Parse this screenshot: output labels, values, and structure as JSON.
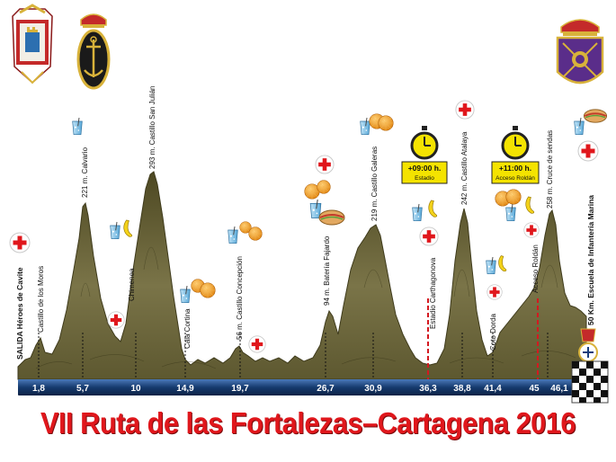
{
  "title": "VII Ruta de las Fortalezas–Cartagena 2016",
  "colors": {
    "profile_fill": "#6f6a3e",
    "profile_dark": "#3f3b1c",
    "axis_bar": "#163a6e",
    "title_red": "#e0171c",
    "cut_line": "#d41920",
    "timer_yellow": "#f4e300"
  },
  "km_marks": [
    "1,8",
    "5,7",
    "10",
    "14,9",
    "19,7",
    "26,7",
    "30,9",
    "36,3",
    "38,8",
    "41,4",
    "45",
    "46,1"
  ],
  "waypoints": [
    {
      "label": "SALIDA  Héroes de Cavite",
      "bold": true
    },
    {
      "label": "Castillo de los Moros",
      "bold": false
    },
    {
      "label": "221 m. Calvario",
      "bold": false
    },
    {
      "label": "Chimenea",
      "bold": false
    },
    {
      "label": "293 m. Castillo San Julián",
      "bold": false
    },
    {
      "label": "Cala Cortina",
      "bold": false
    },
    {
      "label": "56 m. Castillo Concepción",
      "bold": false
    },
    {
      "label": "94 m. Batería Fajardo",
      "bold": false
    },
    {
      "label": "219 m. Castillo Galeras",
      "bold": false
    },
    {
      "label": "Estadio Carthagonova",
      "bold": false
    },
    {
      "label": "242 m. Castillo Atalaya",
      "bold": false
    },
    {
      "label": "Coto Dorda",
      "bold": false
    },
    {
      "label": "Acceso Roldán",
      "bold": false
    },
    {
      "label": "258 m.  Cruce de sendas",
      "bold": false
    },
    {
      "label": "50 Km.  Escuela de Infantería  Marina",
      "bold": true
    }
  ],
  "cutoffs": [
    {
      "time": "+09:00 h.",
      "place": "Estadio"
    },
    {
      "time": "+11:00 h.",
      "place": "Acceso Roldán"
    }
  ],
  "icons": [
    "cartagena-coat-of-arms",
    "navy-anchor-emblem",
    "marine-infantry-emblem",
    "red-cross-icon",
    "drink-icon",
    "fruit-icon",
    "stopwatch-icon",
    "finish-flag-emblem"
  ]
}
